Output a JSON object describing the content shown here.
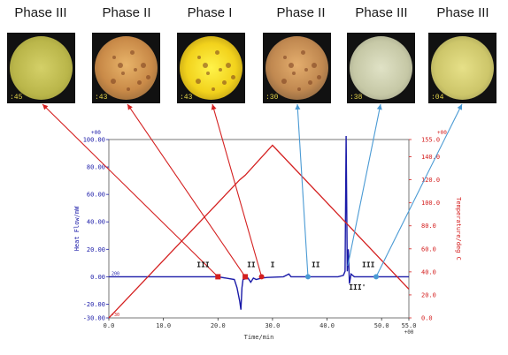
{
  "photos": [
    {
      "title": "Phase III",
      "code": ":45",
      "dish": "radial-gradient(circle at 50% 50%, #d4d068 0%, #bab64a 60%, #8f8c34 100%)",
      "spots": false
    },
    {
      "title": "Phase II",
      "code": ":43",
      "dish": "radial-gradient(circle at 50% 45%, #e8b46a 0%, #c98a48 55%, #7e5a34 100%)",
      "spots": true
    },
    {
      "title": "Phase I",
      "code": ":43",
      "dish": "radial-gradient(circle at 50% 50%, #fff34a 0%, #f2d21c 55%, #9a7a10 100%)",
      "spots": true
    },
    {
      "title": "Phase II",
      "code": ":30",
      "dish": "radial-gradient(circle at 50% 45%, #e4ae6e 0%, #c08850 55%, #6e5238 100%)",
      "spots": true
    },
    {
      "title": "Phase III",
      "code": ":38",
      "dish": "radial-gradient(circle at 50% 50%, #e0e2c6 0%, #c6c8a6 60%, #8e9078 100%)",
      "spots": false
    },
    {
      "title": "Phase III",
      "code": ":04",
      "dish": "radial-gradient(circle at 50% 50%, #e6e088 0%, #cdc66a 60%, #8e8a4c 100%)",
      "spots": false
    }
  ],
  "chart_data": {
    "type": "line",
    "x_label": "Time/min",
    "x_unit_label": "+00",
    "y_left_label": "Heat Flow/mW",
    "y_left_unit_label": "+00",
    "y_right_label": "Temperature/deg C",
    "y_right_unit_label": "+00",
    "x_range": [
      0,
      55
    ],
    "y_left_range": [
      -30,
      100
    ],
    "y_right_range": [
      0,
      155
    ],
    "x_ticks": [
      "0.0",
      "10.0",
      "20.0",
      "30.0",
      "40.0",
      "50.0",
      "55.0"
    ],
    "x_tick_values": [
      0,
      10,
      20,
      30,
      40,
      50,
      55
    ],
    "y_left_ticks": [
      "-30.00",
      "-20.00",
      "0.00",
      "20.00",
      "40.00",
      "60.00",
      "80.00",
      "100.00"
    ],
    "y_left_tick_values": [
      -30,
      -20,
      0,
      20,
      40,
      60,
      80,
      100
    ],
    "y_right_ticks": [
      "0.0",
      "20.0",
      "40.0",
      "60.0",
      "80.0",
      "100.0",
      "120.0",
      "140.0",
      "155.0"
    ],
    "y_right_tick_values": [
      0,
      20,
      40,
      60,
      80,
      100,
      120,
      140,
      155
    ],
    "series": [
      {
        "axis": "left",
        "color": "#1a1aa8",
        "points": [
          [
            0,
            0
          ],
          [
            20,
            0
          ],
          [
            23,
            -2
          ],
          [
            23.5,
            -8
          ],
          [
            24,
            -18
          ],
          [
            24.2,
            -24
          ],
          [
            24.4,
            -8
          ],
          [
            24.6,
            -2
          ],
          [
            25.5,
            -1
          ],
          [
            26,
            -4
          ],
          [
            26.5,
            -1
          ],
          [
            27,
            -2
          ],
          [
            28,
            -1
          ],
          [
            29,
            -0.5
          ],
          [
            32,
            0
          ],
          [
            33,
            2
          ],
          [
            33.4,
            0
          ],
          [
            42,
            0
          ],
          [
            43,
            1
          ],
          [
            43.3,
            4
          ],
          [
            43.5,
            152
          ],
          [
            43.7,
            4
          ],
          [
            43.9,
            20
          ],
          [
            44.1,
            -5
          ],
          [
            44.4,
            2
          ],
          [
            45,
            0
          ],
          [
            55,
            0
          ]
        ]
      },
      {
        "axis": "right",
        "color": "#d42020",
        "points": [
          [
            0,
            0
          ],
          [
            24,
            120
          ],
          [
            25,
            124
          ],
          [
            30,
            150
          ],
          [
            55,
            25
          ]
        ]
      }
    ],
    "markers": [
      {
        "label": "III",
        "x": 20,
        "y": 0,
        "color": "#d42020",
        "shape": "square"
      },
      {
        "label": "II",
        "x": 25,
        "y": 0,
        "color": "#d42020",
        "shape": "square"
      },
      {
        "label": "I",
        "x": 28,
        "y": 0,
        "color": "#d42020",
        "shape": "dot"
      },
      {
        "label": "II",
        "x": 36.5,
        "y": 0,
        "color": "#4a9ad4",
        "shape": "dot"
      },
      {
        "label": "III",
        "x": 49,
        "y": 0,
        "color": "#4a9ad4",
        "shape": "dot"
      }
    ],
    "extra_label": "III'",
    "extra_label_x": 44,
    "extra_label_y": -8,
    "small_labels": {
      "left_zero": "200",
      "left_bottom": "-30"
    },
    "connectors": [
      {
        "photo": 0,
        "marker": 0,
        "color": "#d42020"
      },
      {
        "photo": 1,
        "marker": 1,
        "color": "#d42020"
      },
      {
        "photo": 2,
        "marker": 2,
        "color": "#d42020"
      },
      {
        "photo": 3,
        "marker": 3,
        "color": "#4a9ad4"
      },
      {
        "photo": 4,
        "marker_x": 43.8,
        "marker_y": 8,
        "color": "#4a9ad4"
      },
      {
        "photo": 5,
        "marker": 4,
        "color": "#4a9ad4"
      }
    ]
  }
}
